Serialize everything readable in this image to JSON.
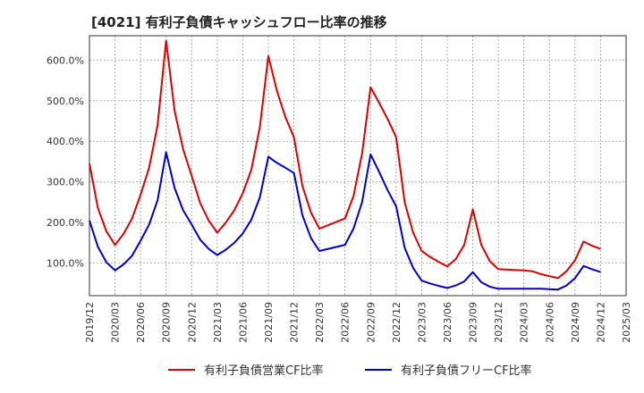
{
  "chart_data": {
    "type": "line",
    "title": "[4021]  有利子負債キャッシュフロー比率の推移",
    "xlabel": "",
    "ylabel": "",
    "x_ticks": [
      "2019/12",
      "2020/03",
      "2020/06",
      "2020/09",
      "2020/12",
      "2021/03",
      "2021/06",
      "2021/09",
      "2021/12",
      "2022/03",
      "2022/06",
      "2022/09",
      "2022/12",
      "2023/03",
      "2023/06",
      "2023/09",
      "2023/12",
      "2024/03",
      "2024/06",
      "2024/09",
      "2024/12",
      "2025/03"
    ],
    "y_ticks": [
      "100.0%",
      "200.0%",
      "300.0%",
      "400.0%",
      "500.0%",
      "600.0%"
    ],
    "y_tick_values": [
      100,
      200,
      300,
      400,
      500,
      600
    ],
    "xlim": [
      "2019/12",
      "2025/03"
    ],
    "ylim": [
      20,
      660
    ],
    "grid": true,
    "legend_position": "bottom",
    "x": [
      "2019/12",
      "2020/01",
      "2020/02",
      "2020/03",
      "2020/04",
      "2020/05",
      "2020/06",
      "2020/07",
      "2020/08",
      "2020/09",
      "2020/10",
      "2020/11",
      "2020/12",
      "2021/01",
      "2021/02",
      "2021/03",
      "2021/04",
      "2021/05",
      "2021/06",
      "2021/07",
      "2021/08",
      "2021/09",
      "2021/10",
      "2021/11",
      "2021/12",
      "2022/01",
      "2022/02",
      "2022/03",
      "2022/06",
      "2022/07",
      "2022/08",
      "2022/09",
      "2022/10",
      "2022/11",
      "2022/12",
      "2023/01",
      "2023/02",
      "2023/03",
      "2023/04",
      "2023/05",
      "2023/06",
      "2023/07",
      "2023/08",
      "2023/09",
      "2023/10",
      "2023/11",
      "2023/12",
      "2024/03",
      "2024/04",
      "2024/05",
      "2024/06",
      "2024/07",
      "2024/08",
      "2024/09",
      "2024/10",
      "2024/11",
      "2024/12"
    ],
    "series": [
      {
        "name": "有利子負債営業CF比率",
        "color": "#dd0000",
        "values": [
          345,
          235,
          178,
          145,
          172,
          210,
          268,
          335,
          440,
          648,
          475,
          380,
          315,
          248,
          205,
          175,
          200,
          230,
          272,
          330,
          435,
          610,
          525,
          460,
          410,
          290,
          225,
          185,
          210,
          265,
          370,
          533,
          495,
          455,
          410,
          250,
          175,
          130,
          115,
          103,
          92,
          110,
          145,
          232,
          145,
          105,
          85,
          82,
          80,
          73,
          68,
          63,
          80,
          107,
          153,
          143,
          135
        ]
      },
      {
        "name": "有利子負債フリーCF比率",
        "color": "#0000cc",
        "values": [
          205,
          140,
          102,
          82,
          97,
          118,
          155,
          195,
          255,
          373,
          285,
          230,
          195,
          158,
          135,
          120,
          133,
          150,
          173,
          207,
          262,
          362,
          347,
          335,
          322,
          218,
          162,
          130,
          145,
          185,
          250,
          368,
          325,
          280,
          240,
          138,
          88,
          57,
          50,
          44,
          39,
          45,
          55,
          78,
          53,
          42,
          37,
          37,
          37,
          37,
          36,
          35,
          45,
          63,
          93,
          85,
          78
        ]
      }
    ]
  }
}
